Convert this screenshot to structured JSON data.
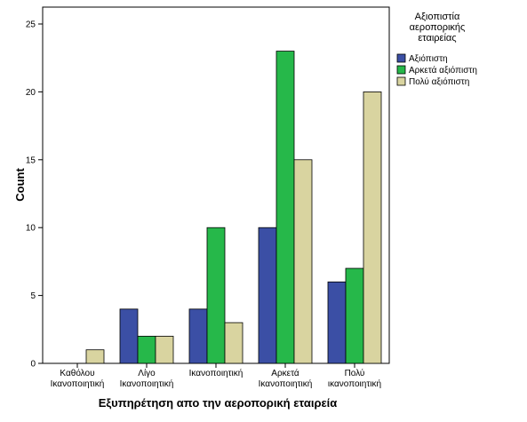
{
  "chart_data": {
    "type": "bar",
    "categories": [
      [
        "Καθόλου",
        "Ικανοποιητική"
      ],
      [
        "Λίγο",
        "Ικανοποιητική"
      ],
      [
        "Ικανοποιητική"
      ],
      [
        "Αρκετά",
        "Ικανοποιητική"
      ],
      [
        "Πολύ",
        "ικανοποιητική"
      ]
    ],
    "series": [
      {
        "name": "Αξιόπιστη",
        "color": "#3b4fa5",
        "values": [
          0,
          4,
          4,
          10,
          6
        ]
      },
      {
        "name": "Αρκετά αξιόπιστη",
        "color": "#26b84a",
        "values": [
          0,
          2,
          10,
          23,
          7
        ]
      },
      {
        "name": "Πολύ αξιόπιστη",
        "color": "#d9d4a0",
        "values": [
          1,
          2,
          3,
          15,
          20
        ]
      }
    ],
    "xlabel": "Εξυπηρέτηση απο την αεροπορική εταιρεία",
    "ylabel": "Count",
    "ylim": [
      0,
      25
    ],
    "yticks": [
      0,
      5,
      10,
      15,
      20,
      25
    ],
    "grid": false,
    "legend": {
      "title": [
        "Αξιοπιστία",
        "αεροπορικής",
        "εταιρείας"
      ],
      "position": "right"
    }
  }
}
